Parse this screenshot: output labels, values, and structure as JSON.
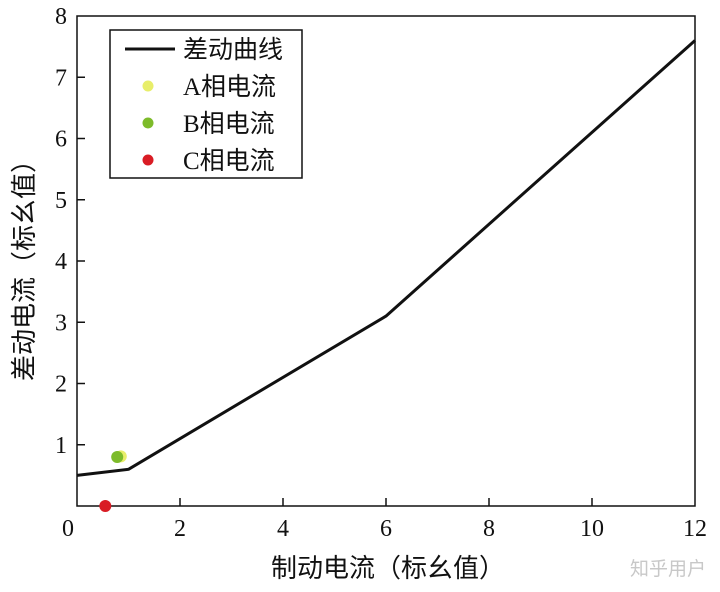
{
  "chart_data": {
    "type": "line",
    "xlabel": "制动电流（标幺值）",
    "ylabel": "差动电流（标幺值）",
    "xlim": [
      0,
      12
    ],
    "ylim": [
      0,
      8
    ],
    "xticks": [
      0,
      2,
      4,
      6,
      8,
      10,
      12
    ],
    "yticks": [
      1,
      2,
      3,
      4,
      5,
      6,
      7,
      8
    ],
    "grid": false,
    "legend_position": "top-left",
    "series": [
      {
        "name": "差动曲线",
        "kind": "line",
        "color": "#111111",
        "points": [
          [
            0,
            0.5
          ],
          [
            1,
            0.6
          ],
          [
            6,
            3.1
          ],
          [
            12,
            7.6
          ]
        ]
      },
      {
        "name": "A相电流",
        "kind": "scatter",
        "color": "#e8ee6a",
        "points": [
          [
            0.85,
            0.81
          ]
        ]
      },
      {
        "name": "B相电流",
        "kind": "scatter",
        "color": "#7dbb2a",
        "points": [
          [
            0.78,
            0.8
          ]
        ]
      },
      {
        "name": "C相电流",
        "kind": "scatter",
        "color": "#d91c24",
        "points": [
          [
            0.55,
            0.0
          ]
        ]
      }
    ]
  },
  "watermark": "知乎用户"
}
